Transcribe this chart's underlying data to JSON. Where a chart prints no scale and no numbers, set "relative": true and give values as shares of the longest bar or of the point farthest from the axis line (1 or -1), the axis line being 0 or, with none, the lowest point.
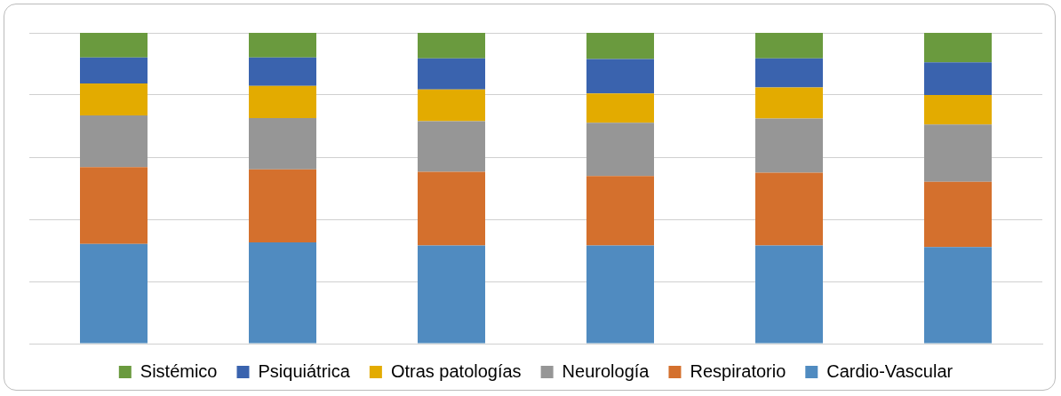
{
  "chart_data": {
    "type": "bar",
    "stacked": true,
    "relative": true,
    "grid": "y",
    "legend": "bottom",
    "categories": [
      null,
      null,
      null,
      null,
      null,
      null
    ],
    "series": [
      {
        "name": "Cardio-Vascular",
        "color": "#508bc0",
        "values": [
          0.321,
          0.326,
          0.316,
          0.316,
          0.316,
          0.311
        ]
      },
      {
        "name": "Respiratorio",
        "color": "#d4702d",
        "values": [
          0.247,
          0.235,
          0.237,
          0.223,
          0.234,
          0.21
        ]
      },
      {
        "name": "Neurología",
        "color": "#969696",
        "values": [
          0.166,
          0.165,
          0.163,
          0.172,
          0.174,
          0.184
        ]
      },
      {
        "name": "Otras patologías",
        "color": "#e3ab00",
        "values": [
          0.103,
          0.103,
          0.102,
          0.094,
          0.1,
          0.095
        ]
      },
      {
        "name": "Psiquiátrica",
        "color": "#3a63ae",
        "values": [
          0.084,
          0.092,
          0.1,
          0.111,
          0.094,
          0.105
        ]
      },
      {
        "name": "Sistémico",
        "color": "#6a9a3e",
        "values": [
          0.079,
          0.079,
          0.082,
          0.084,
          0.082,
          0.095
        ]
      }
    ]
  }
}
